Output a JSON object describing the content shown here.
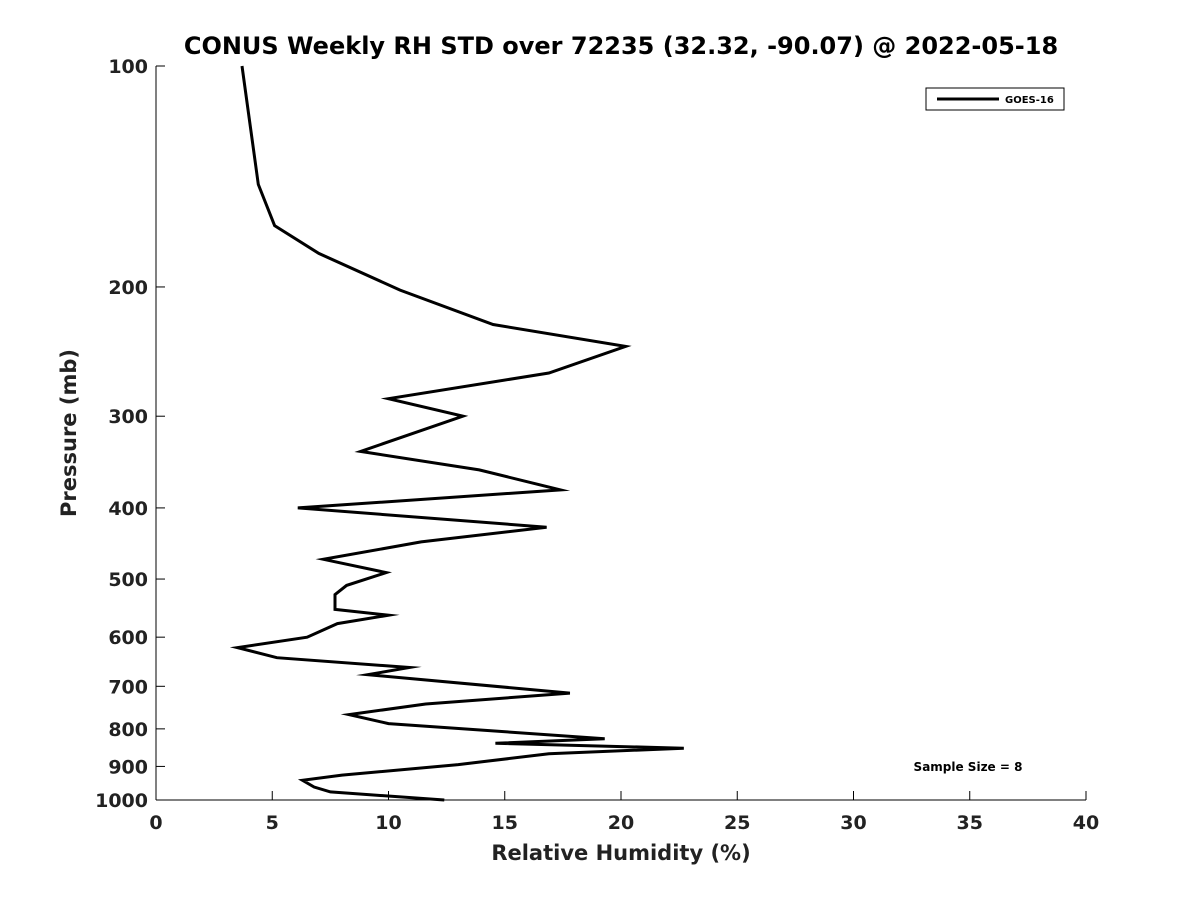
{
  "chart_data": {
    "type": "line",
    "title": "CONUS Weekly RH STD over 72235 (32.32, -90.07) @ 2022-05-18",
    "xlabel": "Relative Humidity (%)",
    "ylabel": "Pressure (mb)",
    "xlim": [
      0,
      40
    ],
    "ylim": [
      1000,
      100
    ],
    "y_scale": "log",
    "grid": false,
    "legend_position": "top-right",
    "x_ticks": [
      "0",
      "5",
      "10",
      "15",
      "20",
      "25",
      "30",
      "35",
      "40"
    ],
    "y_ticks": [
      "100",
      "200",
      "300",
      "400",
      "500",
      "600",
      "700",
      "800",
      "900",
      "1000"
    ],
    "annotation": "Sample Size = 8",
    "series": [
      {
        "name": "GOES-16",
        "color": "#000000",
        "points": [
          [
            12.4,
            1000
          ],
          [
            7.5,
            975
          ],
          [
            6.8,
            960
          ],
          [
            6.3,
            940
          ],
          [
            8.0,
            925
          ],
          [
            13.0,
            895
          ],
          [
            16.9,
            865
          ],
          [
            22.7,
            850
          ],
          [
            14.6,
            837
          ],
          [
            19.3,
            825
          ],
          [
            10.0,
            787
          ],
          [
            8.3,
            765
          ],
          [
            11.6,
            740
          ],
          [
            17.8,
            715
          ],
          [
            9.1,
            675
          ],
          [
            10.9,
            660
          ],
          [
            5.2,
            640
          ],
          [
            3.5,
            620
          ],
          [
            6.5,
            600
          ],
          [
            7.8,
            575
          ],
          [
            10.0,
            560
          ],
          [
            7.7,
            550
          ],
          [
            7.7,
            525
          ],
          [
            8.2,
            510
          ],
          [
            9.9,
            490
          ],
          [
            7.2,
            470
          ],
          [
            11.4,
            445
          ],
          [
            16.8,
            425
          ],
          [
            6.1,
            400
          ],
          [
            17.4,
            378
          ],
          [
            13.9,
            355
          ],
          [
            8.8,
            335
          ],
          [
            13.2,
            300
          ],
          [
            10.0,
            284
          ],
          [
            16.9,
            262
          ],
          [
            20.2,
            241
          ],
          [
            14.5,
            225
          ],
          [
            10.5,
            202
          ],
          [
            7.0,
            180
          ],
          [
            5.1,
            165
          ],
          [
            4.4,
            145
          ],
          [
            3.7,
            100
          ]
        ]
      }
    ]
  }
}
